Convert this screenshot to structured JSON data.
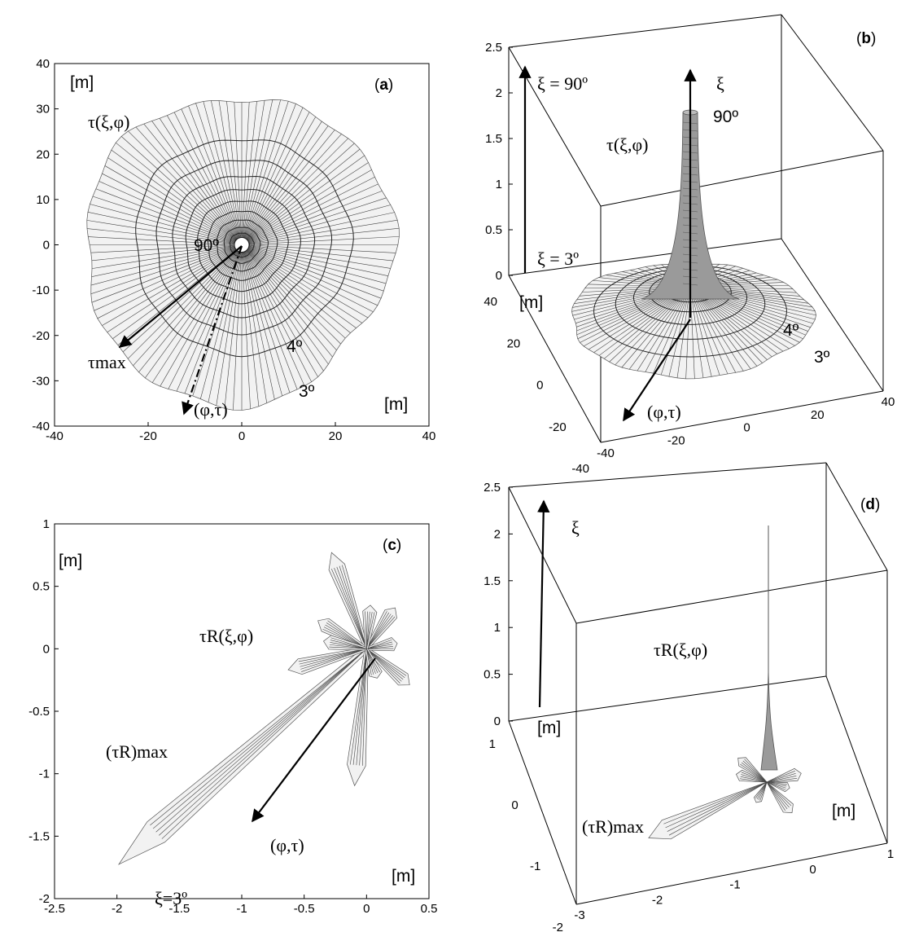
{
  "chart_data": [
    {
      "panel": "(a)",
      "type": "polar-mesh",
      "xlim": [
        -40,
        40
      ],
      "ylim": [
        -40,
        40
      ],
      "xticks": [
        "-40",
        "-20",
        "0",
        "20",
        "40"
      ],
      "yticks": [
        "40",
        "30",
        "20",
        "10",
        "0",
        "-10",
        "-20",
        "-30",
        "-40"
      ],
      "annotations": {
        "unit_top": "[m]",
        "unit_bottom": "[m]",
        "tau_label": "τ(ξ,φ)",
        "tau_max": "τmax",
        "phi_tau": "(φ,τ)",
        "ring_90": "90º",
        "ring_4": "4º",
        "ring_3": "3º"
      },
      "outer_radius_m": 32,
      "rings": [
        {
          "label": "3º",
          "radius": 32
        },
        {
          "label": "4º",
          "radius": 23
        }
      ]
    },
    {
      "panel": "(b)",
      "type": "3d-surface",
      "zlim": [
        0,
        2.5
      ],
      "zticks": [
        "2.5",
        "2",
        "1.5",
        "1",
        "0.5",
        "0"
      ],
      "yticks": [
        "40",
        "20",
        "0",
        "-20",
        "-40"
      ],
      "xticks": [
        "-40",
        "-20",
        "0",
        "20",
        "40"
      ],
      "annotations": {
        "xi_90": "ξ = 90º",
        "xi_3": "ξ = 3º",
        "xi": "ξ",
        "deg90": "90º",
        "tau_label": "τ(ξ,φ)",
        "unit": "[m]",
        "ring_4": "4º",
        "ring_3": "3º",
        "phi_tau": "(φ,τ)"
      }
    },
    {
      "panel": "(c)",
      "type": "polar-mesh",
      "xlim": [
        -2.5,
        0.5
      ],
      "ylim": [
        -2,
        1
      ],
      "xticks": [
        "-2.5",
        "-2",
        "-1.5",
        "-1",
        "-0.5",
        "0",
        "0.5"
      ],
      "yticks": [
        "1",
        "0.5",
        "0",
        "-0.5",
        "-1",
        "-1.5",
        "-2"
      ],
      "annotations": {
        "unit_top": "[m]",
        "unit_bottom": "[m]",
        "tauR": "τR(ξ,φ)",
        "tauR_max": "(τR)max",
        "phi_tau": "(φ,τ)",
        "xi3": "ξ=3º"
      },
      "lobes": [
        {
          "angle_deg": 221,
          "length": 2.63
        },
        {
          "angle_deg": 110,
          "length": 0.82
        },
        {
          "angle_deg": 265,
          "length": 1.1
        },
        {
          "angle_deg": 55,
          "length": 0.4
        },
        {
          "angle_deg": 150,
          "length": 0.45
        },
        {
          "angle_deg": 195,
          "length": 0.65
        },
        {
          "angle_deg": 320,
          "length": 0.45
        },
        {
          "angle_deg": 10,
          "length": 0.25
        },
        {
          "angle_deg": 85,
          "length": 0.35
        },
        {
          "angle_deg": 170,
          "length": 0.35
        },
        {
          "angle_deg": 290,
          "length": 0.25
        }
      ]
    },
    {
      "panel": "(d)",
      "type": "3d-surface",
      "zlim": [
        0,
        2.5
      ],
      "zticks": [
        "2.5",
        "2",
        "1.5",
        "1",
        "0.5",
        "0"
      ],
      "yticks": [
        "1",
        "0",
        "-1",
        "-2"
      ],
      "xticks": [
        "-3",
        "-2",
        "-1",
        "0",
        "1"
      ],
      "annotations": {
        "xi": "ξ",
        "tauR": "τR(ξ,φ)",
        "unit1": "[m]",
        "unit2": "[m]",
        "tauR_max": "(τR)max"
      }
    }
  ],
  "panel_labels": {
    "a": "a",
    "b": "b",
    "c": "c",
    "d": "d"
  },
  "colors": {
    "mesh_fill": "#f2f2f2",
    "mesh_line": "#555555",
    "ink": "#000000"
  }
}
